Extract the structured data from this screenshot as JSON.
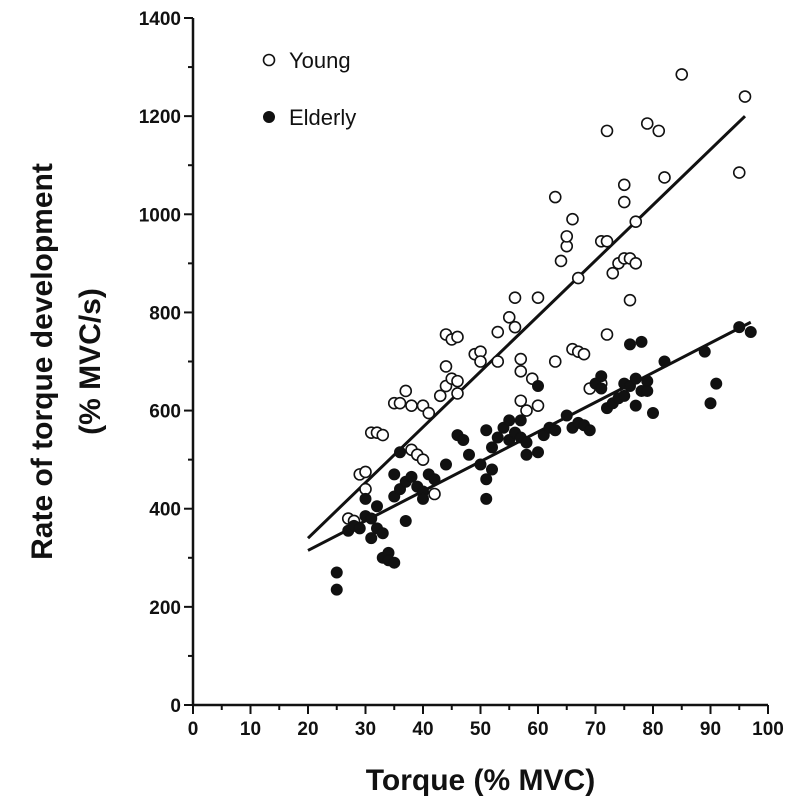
{
  "chart_data": {
    "type": "scatter",
    "title": "",
    "xlabel": "Torque (% MVC)",
    "ylabel_line1": "Rate of torque development",
    "ylabel_line2": "(% MVC/s)",
    "xlim": [
      0,
      100
    ],
    "ylim": [
      0,
      1400
    ],
    "xticks": [
      0,
      10,
      20,
      30,
      40,
      50,
      60,
      70,
      80,
      90,
      100
    ],
    "yticks": [
      0,
      200,
      400,
      600,
      800,
      1000,
      1200,
      1400
    ],
    "grid": false,
    "legend_position": "top-left",
    "series": [
      {
        "name": "Young",
        "marker": "open-circle",
        "color": "#111111",
        "points": [
          [
            27,
            380
          ],
          [
            28,
            375
          ],
          [
            29,
            470
          ],
          [
            30,
            475
          ],
          [
            30,
            440
          ],
          [
            31,
            555
          ],
          [
            32,
            555
          ],
          [
            33,
            550
          ],
          [
            35,
            615
          ],
          [
            36,
            615
          ],
          [
            37,
            640
          ],
          [
            38,
            520
          ],
          [
            38,
            610
          ],
          [
            39,
            510
          ],
          [
            40,
            500
          ],
          [
            40,
            610
          ],
          [
            41,
            595
          ],
          [
            42,
            430
          ],
          [
            43,
            630
          ],
          [
            44,
            650
          ],
          [
            44,
            690
          ],
          [
            44,
            755
          ],
          [
            45,
            745
          ],
          [
            45,
            665
          ],
          [
            46,
            750
          ],
          [
            46,
            660
          ],
          [
            46,
            635
          ],
          [
            49,
            715
          ],
          [
            50,
            720
          ],
          [
            50,
            700
          ],
          [
            53,
            760
          ],
          [
            53,
            700
          ],
          [
            55,
            790
          ],
          [
            56,
            830
          ],
          [
            56,
            770
          ],
          [
            57,
            705
          ],
          [
            57,
            680
          ],
          [
            57,
            620
          ],
          [
            58,
            600
          ],
          [
            59,
            665
          ],
          [
            60,
            830
          ],
          [
            60,
            610
          ],
          [
            63,
            1035
          ],
          [
            63,
            700
          ],
          [
            64,
            905
          ],
          [
            65,
            935
          ],
          [
            65,
            955
          ],
          [
            66,
            990
          ],
          [
            66,
            725
          ],
          [
            67,
            870
          ],
          [
            67,
            720
          ],
          [
            68,
            715
          ],
          [
            69,
            645
          ],
          [
            71,
            945
          ],
          [
            71,
            655
          ],
          [
            72,
            1170
          ],
          [
            72,
            945
          ],
          [
            72,
            755
          ],
          [
            73,
            880
          ],
          [
            74,
            900
          ],
          [
            75,
            1060
          ],
          [
            75,
            1025
          ],
          [
            75,
            910
          ],
          [
            76,
            910
          ],
          [
            76,
            825
          ],
          [
            77,
            985
          ],
          [
            77,
            900
          ],
          [
            79,
            1185
          ],
          [
            81,
            1170
          ],
          [
            82,
            1075
          ],
          [
            85,
            1285
          ],
          [
            95,
            1085
          ],
          [
            96,
            1240
          ]
        ],
        "fit": {
          "x": [
            20,
            96
          ],
          "y": [
            340,
            1200
          ]
        }
      },
      {
        "name": "Elderly",
        "marker": "filled-circle",
        "color": "#111111",
        "points": [
          [
            25,
            270
          ],
          [
            25,
            235
          ],
          [
            27,
            355
          ],
          [
            28,
            365
          ],
          [
            29,
            360
          ],
          [
            30,
            420
          ],
          [
            30,
            385
          ],
          [
            31,
            340
          ],
          [
            31,
            380
          ],
          [
            32,
            405
          ],
          [
            32,
            360
          ],
          [
            33,
            300
          ],
          [
            33,
            350
          ],
          [
            34,
            310
          ],
          [
            34,
            295
          ],
          [
            35,
            290
          ],
          [
            35,
            470
          ],
          [
            35,
            425
          ],
          [
            36,
            515
          ],
          [
            36,
            440
          ],
          [
            37,
            375
          ],
          [
            37,
            455
          ],
          [
            38,
            465
          ],
          [
            39,
            445
          ],
          [
            40,
            435
          ],
          [
            40,
            420
          ],
          [
            41,
            470
          ],
          [
            42,
            460
          ],
          [
            44,
            490
          ],
          [
            46,
            550
          ],
          [
            47,
            540
          ],
          [
            48,
            510
          ],
          [
            50,
            490
          ],
          [
            51,
            420
          ],
          [
            51,
            460
          ],
          [
            51,
            560
          ],
          [
            52,
            480
          ],
          [
            52,
            525
          ],
          [
            53,
            545
          ],
          [
            54,
            565
          ],
          [
            55,
            540
          ],
          [
            55,
            580
          ],
          [
            56,
            555
          ],
          [
            57,
            545
          ],
          [
            57,
            580
          ],
          [
            58,
            535
          ],
          [
            58,
            510
          ],
          [
            60,
            650
          ],
          [
            60,
            515
          ],
          [
            61,
            550
          ],
          [
            62,
            565
          ],
          [
            63,
            560
          ],
          [
            65,
            590
          ],
          [
            66,
            565
          ],
          [
            67,
            575
          ],
          [
            68,
            570
          ],
          [
            69,
            560
          ],
          [
            70,
            655
          ],
          [
            71,
            670
          ],
          [
            71,
            645
          ],
          [
            72,
            605
          ],
          [
            73,
            615
          ],
          [
            74,
            625
          ],
          [
            75,
            630
          ],
          [
            75,
            655
          ],
          [
            76,
            735
          ],
          [
            76,
            650
          ],
          [
            77,
            610
          ],
          [
            77,
            665
          ],
          [
            78,
            740
          ],
          [
            78,
            640
          ],
          [
            79,
            660
          ],
          [
            79,
            640
          ],
          [
            80,
            595
          ],
          [
            82,
            700
          ],
          [
            89,
            720
          ],
          [
            90,
            615
          ],
          [
            91,
            655
          ],
          [
            95,
            770
          ],
          [
            97,
            760
          ]
        ],
        "fit": {
          "x": [
            20,
            97
          ],
          "y": [
            315,
            780
          ]
        }
      }
    ]
  }
}
